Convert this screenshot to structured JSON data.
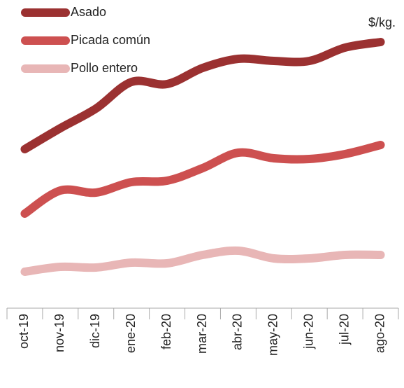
{
  "chart_data": {
    "type": "line",
    "unit_label": "$/kg.",
    "categories": [
      "oct-19",
      "nov-19",
      "dic-19",
      "ene-20",
      "feb-20",
      "mar-20",
      "abr-20",
      "may-20",
      "jun-20",
      "jul-20",
      "ago-20"
    ],
    "series": [
      {
        "name": "Asado",
        "color": "#9b3131",
        "values": [
          227,
          257,
          285,
          323,
          320,
          343,
          356,
          353,
          353,
          372,
          380
        ]
      },
      {
        "name": "Picada común",
        "color": "#cd5050",
        "values": [
          135,
          168,
          165,
          180,
          182,
          200,
          222,
          214,
          213,
          220,
          233
        ]
      },
      {
        "name": "Pollo entero",
        "color": "#e8b6b6",
        "values": [
          52,
          59,
          58,
          65,
          64,
          76,
          82,
          71,
          71,
          76,
          76
        ]
      }
    ],
    "ylim": [
      0,
      440
    ],
    "legend": "top-left"
  }
}
